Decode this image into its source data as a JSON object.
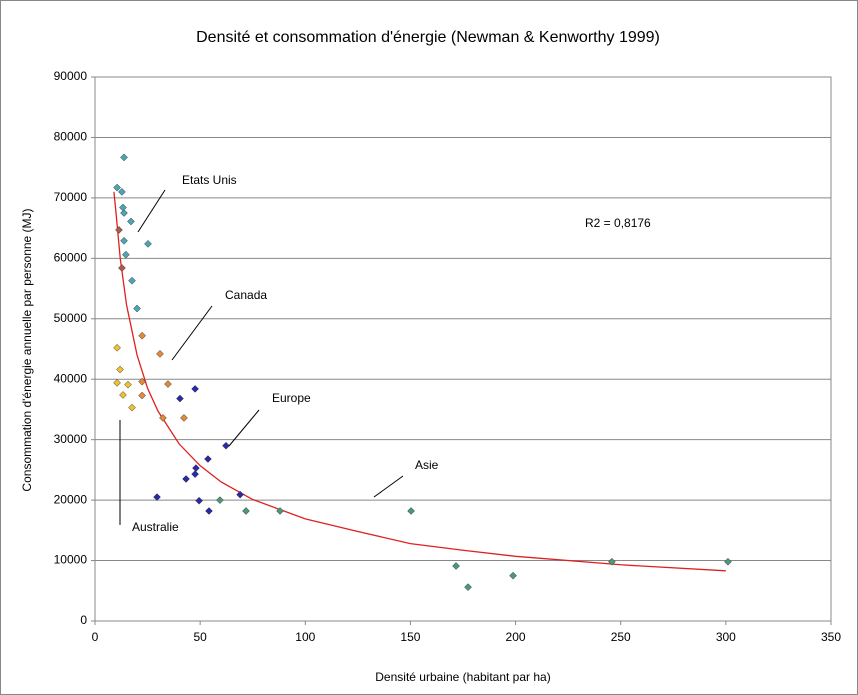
{
  "chart_data": {
    "type": "scatter",
    "title": "Densité et consommation d'énergie (Newman & Kenworthy 1999)",
    "x_label": "Densité urbaine (habitant par ha)",
    "y_label": "Consommation d'énergie annuelle par personne (MJ)",
    "xlim": [
      0,
      350
    ],
    "xticks": [
      0,
      50,
      100,
      150,
      200,
      250,
      300,
      350
    ],
    "ylim": [
      0,
      90000
    ],
    "yticks": [
      0,
      10000,
      20000,
      30000,
      40000,
      50000,
      60000,
      70000,
      80000,
      90000
    ],
    "grid": true,
    "annotations": [
      "Etats Unis",
      "Canada",
      "Europe",
      "Asie",
      "Australie",
      "R2 = 0,8176"
    ],
    "series": [
      {
        "color": "#4aa6b4",
        "x": [
          13.8,
          10.5,
          12.8,
          13.3,
          13.8,
          17.1,
          25.2,
          13.8,
          14.7,
          17.6,
          20.0
        ],
        "values": [
          76700,
          71700,
          71000,
          68400,
          67500,
          66100,
          62400,
          62900,
          60600,
          56300,
          51700
        ]
      },
      {
        "color": "#b05a4a",
        "x": [
          11.4,
          12.8
        ],
        "values": [
          64700,
          58400
        ]
      },
      {
        "color": "#e08a3a",
        "x": [
          22.4,
          30.9,
          34.7,
          22.4,
          22.4,
          32.3,
          42.3
        ],
        "values": [
          47200,
          44200,
          39200,
          39600,
          37300,
          33600,
          33600
        ]
      },
      {
        "color": "#f0c030",
        "x": [
          10.5,
          11.9,
          10.5,
          15.7,
          13.3,
          17.6
        ],
        "values": [
          45200,
          41600,
          39400,
          39100,
          37400,
          35300
        ]
      },
      {
        "color": "#2a2aa8",
        "x": [
          40.4,
          47.6,
          29.5,
          43.3,
          47.6,
          48.0,
          53.7,
          62.3,
          49.5,
          54.2,
          69.0
        ],
        "values": [
          36800,
          38400,
          20500,
          23500,
          24300,
          25300,
          26800,
          29000,
          19900,
          18200,
          20900
        ]
      },
      {
        "color": "#4a9a7a",
        "x": [
          59.4,
          71.8,
          88.0,
          150.3,
          171.7,
          177.4,
          198.8,
          245.8,
          301.0
        ],
        "values": [
          20000,
          18200,
          18200,
          18200,
          9100,
          5600,
          7500,
          9800,
          9800
        ]
      }
    ],
    "trendline": {
      "color": "#e02020",
      "x": [
        9,
        10,
        12,
        15,
        20,
        25,
        30,
        40,
        50,
        60,
        75,
        100,
        125,
        150,
        175,
        200,
        250,
        300
      ],
      "values": [
        71000,
        67500,
        60000,
        52300,
        44000,
        38500,
        34700,
        29300,
        25700,
        23000,
        20100,
        16900,
        14800,
        12800,
        11700,
        10700,
        9300,
        8300
      ]
    }
  }
}
